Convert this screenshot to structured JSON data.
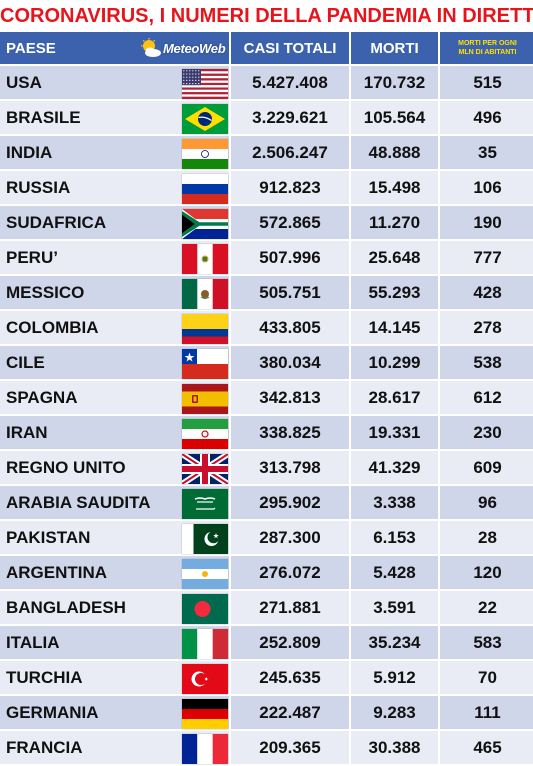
{
  "title": "CORONAVIRUS, I NUMERI DELLA PANDEMIA IN DIRETTA",
  "logo_text": "MeteoWeb",
  "headers": {
    "country": "PAESE",
    "cases": "CASI TOTALI",
    "deaths": "MORTI",
    "per_million_line1": "MORTI PER OGNI",
    "per_million_line2": "MLN DI ABITANTI"
  },
  "colors": {
    "title": "#e8141b",
    "header_bg": "#3d62ad",
    "header_small_text": "#ffe100",
    "row_dark": "#cfd6ea",
    "row_light": "#e9ecf5"
  },
  "rows": [
    {
      "country": "USA",
      "cases": "5.427.408",
      "deaths": "170.732",
      "per_million": "515",
      "flag_icon": "usa-flag-icon"
    },
    {
      "country": "BRASILE",
      "cases": "3.229.621",
      "deaths": "105.564",
      "per_million": "496",
      "flag_icon": "brazil-flag-icon"
    },
    {
      "country": "INDIA",
      "cases": "2.506.247",
      "deaths": "48.888",
      "per_million": "35",
      "flag_icon": "india-flag-icon"
    },
    {
      "country": "RUSSIA",
      "cases": "912.823",
      "deaths": "15.498",
      "per_million": "106",
      "flag_icon": "russia-flag-icon"
    },
    {
      "country": "SUDAFRICA",
      "cases": "572.865",
      "deaths": "11.270",
      "per_million": "190",
      "flag_icon": "south-africa-flag-icon"
    },
    {
      "country": "PERU’",
      "cases": "507.996",
      "deaths": "25.648",
      "per_million": "777",
      "flag_icon": "peru-flag-icon"
    },
    {
      "country": "MESSICO",
      "cases": "505.751",
      "deaths": "55.293",
      "per_million": "428",
      "flag_icon": "mexico-flag-icon"
    },
    {
      "country": "COLOMBIA",
      "cases": "433.805",
      "deaths": "14.145",
      "per_million": "278",
      "flag_icon": "colombia-flag-icon"
    },
    {
      "country": "CILE",
      "cases": "380.034",
      "deaths": "10.299",
      "per_million": "538",
      "flag_icon": "chile-flag-icon"
    },
    {
      "country": "SPAGNA",
      "cases": "342.813",
      "deaths": "28.617",
      "per_million": "612",
      "flag_icon": "spain-flag-icon"
    },
    {
      "country": "IRAN",
      "cases": "338.825",
      "deaths": "19.331",
      "per_million": "230",
      "flag_icon": "iran-flag-icon"
    },
    {
      "country": "REGNO UNITO",
      "cases": "313.798",
      "deaths": "41.329",
      "per_million": "609",
      "flag_icon": "uk-flag-icon"
    },
    {
      "country": "ARABIA SAUDITA",
      "cases": "295.902",
      "deaths": "3.338",
      "per_million": "96",
      "flag_icon": "saudi-arabia-flag-icon"
    },
    {
      "country": "PAKISTAN",
      "cases": "287.300",
      "deaths": "6.153",
      "per_million": "28",
      "flag_icon": "pakistan-flag-icon"
    },
    {
      "country": "ARGENTINA",
      "cases": "276.072",
      "deaths": "5.428",
      "per_million": "120",
      "flag_icon": "argentina-flag-icon"
    },
    {
      "country": "BANGLADESH",
      "cases": "271.881",
      "deaths": "3.591",
      "per_million": "22",
      "flag_icon": "bangladesh-flag-icon"
    },
    {
      "country": "ITALIA",
      "cases": "252.809",
      "deaths": "35.234",
      "per_million": "583",
      "flag_icon": "italy-flag-icon"
    },
    {
      "country": "TURCHIA",
      "cases": "245.635",
      "deaths": "5.912",
      "per_million": "70",
      "flag_icon": "turkey-flag-icon"
    },
    {
      "country": "GERMANIA",
      "cases": "222.487",
      "deaths": "9.283",
      "per_million": "111",
      "flag_icon": "germany-flag-icon"
    },
    {
      "country": "FRANCIA",
      "cases": "209.365",
      "deaths": "30.388",
      "per_million": "465",
      "flag_icon": "france-flag-icon"
    }
  ]
}
